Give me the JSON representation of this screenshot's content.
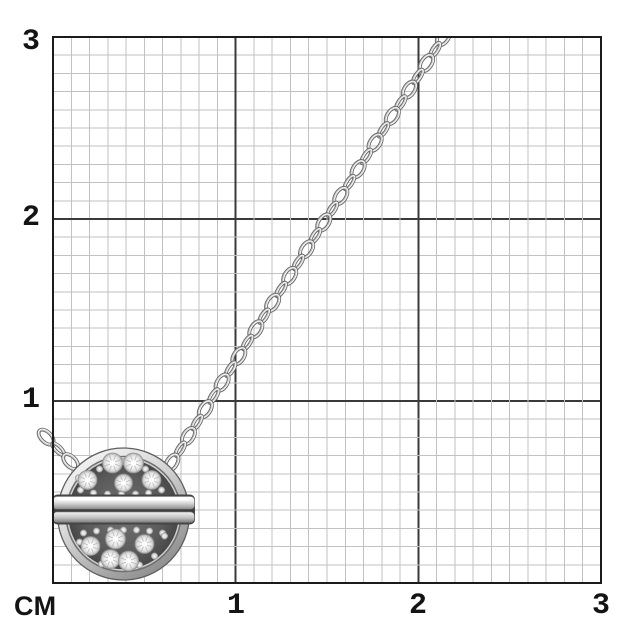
{
  "scene": {
    "description": "Product photo of a silver pavé-diamond round pendant on a cable chain, laid over a centimeter measurement grid"
  },
  "grid": {
    "unit_label": "СМ",
    "x_ticks": [
      "1",
      "2",
      "3"
    ],
    "y_ticks": [
      "3",
      "2",
      "1"
    ],
    "cm_range": [
      0,
      3
    ],
    "minor_divisions_per_cm": 10,
    "colors": {
      "background": "#ffffff",
      "minor_line": "#c2c2c2",
      "major_line": "#3a3a3a",
      "border": "#1b1b1b",
      "label": "#141414"
    }
  },
  "product": {
    "type": "necklace",
    "pendant_shape": "round disc with horizontal double-bar band",
    "large_stones_top_half": 5,
    "large_stones_bottom_half": 5,
    "stone_type": "round brilliant pavé",
    "metal_color": "#d8d8d8",
    "chain_style": "cable link"
  }
}
